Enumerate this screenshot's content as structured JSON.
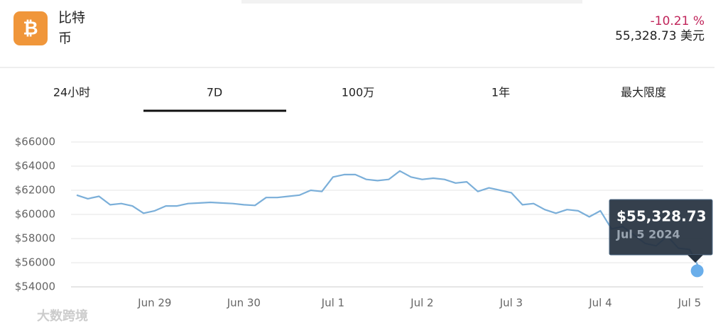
{
  "header": {
    "name": "比特币",
    "change": "-10.21 %",
    "price": "55,328.73 美元"
  },
  "tabs": [
    "24小时",
    "7D",
    "100万",
    "1年",
    "最大限度"
  ],
  "watermark": "大数跨境",
  "chart_data": {
    "type": "line",
    "categories": [
      null,
      null,
      null,
      null,
      null,
      null,
      null,
      "Jun 29",
      null,
      null,
      null,
      null,
      null,
      null,
      null,
      "Jun 30",
      null,
      null,
      null,
      null,
      null,
      null,
      null,
      "Jul 1",
      null,
      null,
      null,
      null,
      null,
      null,
      null,
      "Jul 2",
      null,
      null,
      null,
      null,
      null,
      null,
      null,
      "Jul 3",
      null,
      null,
      null,
      null,
      null,
      null,
      null,
      "Jul 4",
      null,
      null,
      null,
      null,
      null,
      null,
      null,
      "Jul 5",
      null
    ],
    "series": [
      {
        "color": "#7bafd9",
        "values": [
          61600,
          61300,
          61500,
          60800,
          60900,
          60700,
          60100,
          60300,
          60700,
          60700,
          60900,
          60950,
          61000,
          60950,
          60900,
          60800,
          60750,
          61400,
          61400,
          61500,
          61600,
          62000,
          61900,
          63100,
          63300,
          63300,
          62900,
          62800,
          62900,
          63600,
          63100,
          62900,
          63000,
          62900,
          62600,
          62700,
          61900,
          62200,
          62000,
          61800,
          60800,
          60900,
          60400,
          60100,
          60400,
          60300,
          59800,
          60300,
          58800,
          59000,
          58300,
          57600,
          57400,
          58200,
          57200,
          57100,
          55328.73
        ]
      }
    ],
    "ylim": [
      54000,
      66000
    ],
    "yticks": [
      {
        "value": 54000,
        "label": "$54000"
      },
      {
        "value": 56000,
        "label": "$56000"
      },
      {
        "value": 58000,
        "label": "$58000"
      },
      {
        "value": 60000,
        "label": "$60000"
      },
      {
        "value": 62000,
        "label": "$62000"
      },
      {
        "value": 64000,
        "label": "$64000"
      },
      {
        "value": 66000,
        "label": "$66000"
      }
    ],
    "grid": true,
    "tooltip": {
      "label": "$55,328.73",
      "date": "Jul 5 2024"
    }
  }
}
